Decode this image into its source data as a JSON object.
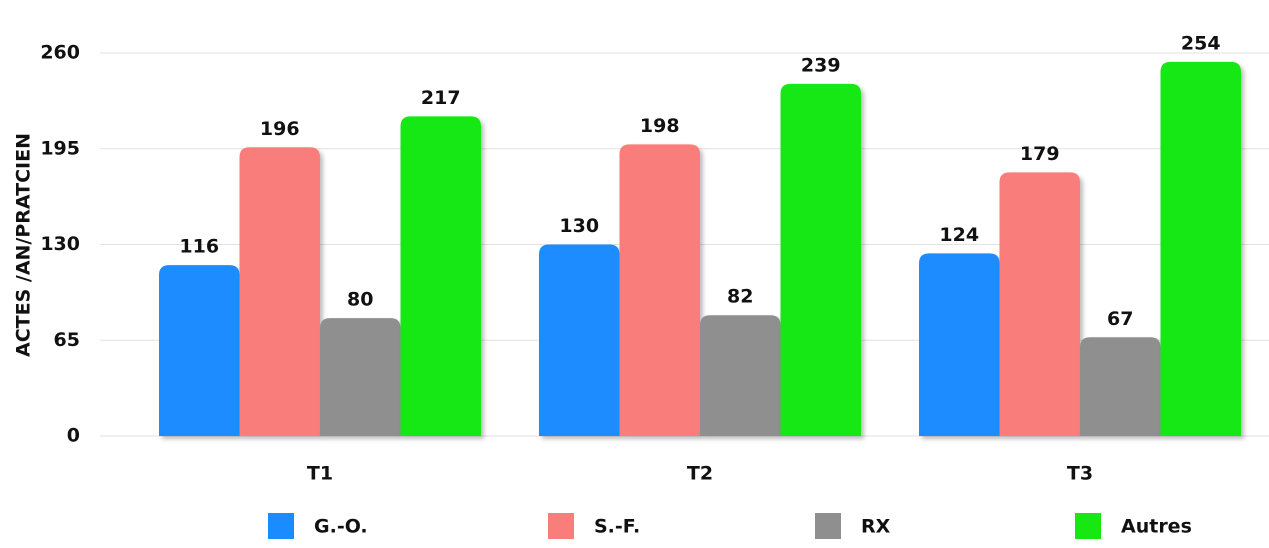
{
  "chart_data": {
    "type": "bar",
    "y_label": "ACTES /AN/PRATCIEN",
    "categories": [
      "T1",
      "T2",
      "T3"
    ],
    "series": [
      {
        "name": "G.-O.",
        "color": "#1a8cff",
        "values": [
          116,
          130,
          124
        ]
      },
      {
        "name": "S.-F.",
        "color": "#f97d7a",
        "values": [
          196,
          198,
          179
        ]
      },
      {
        "name": "RX",
        "color": "#8f8f8f",
        "values": [
          80,
          82,
          67
        ]
      },
      {
        "name": "Autres",
        "color": "#17e812",
        "values": [
          217,
          239,
          254
        ]
      }
    ],
    "ylim": [
      0,
      260
    ],
    "yticks": [
      0,
      65,
      130,
      195,
      260
    ],
    "grid": true,
    "legend": "bottom"
  }
}
